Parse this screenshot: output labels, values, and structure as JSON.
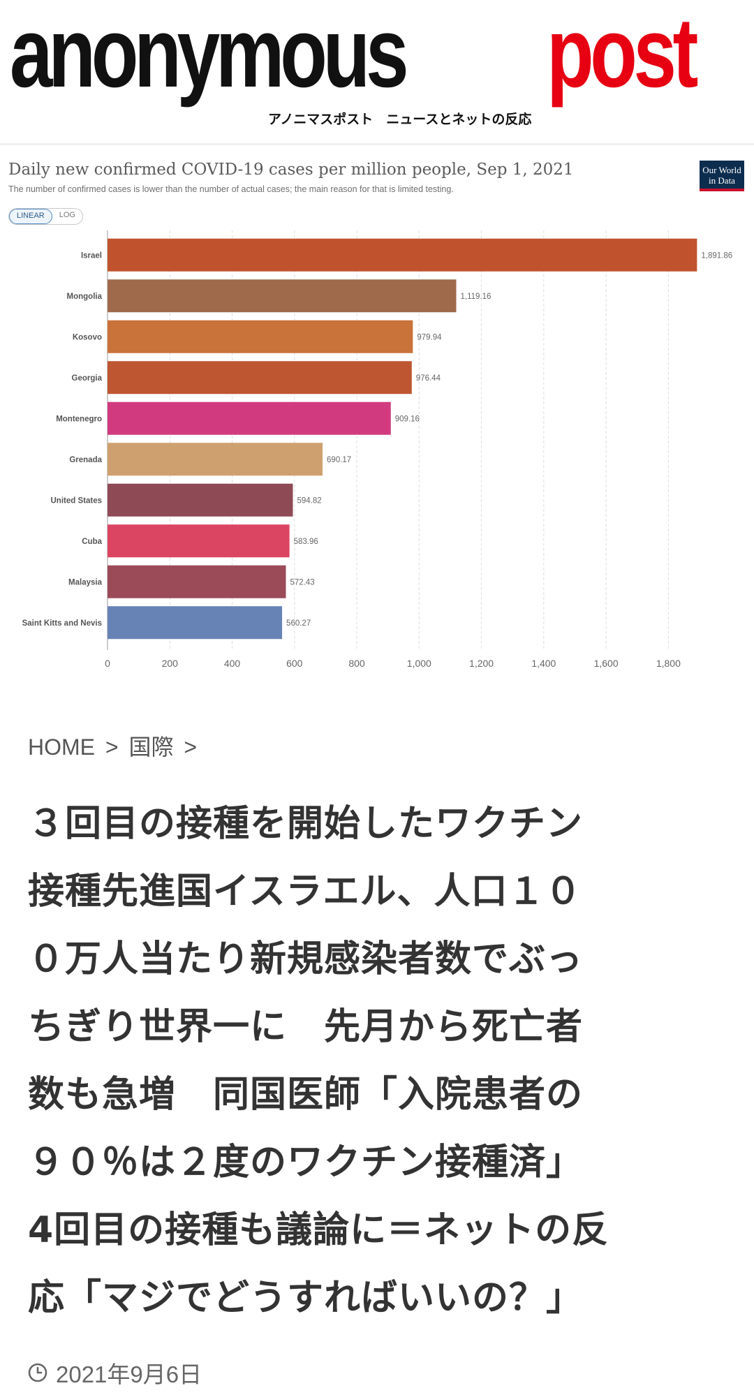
{
  "header": {
    "logo_black": "anonymous",
    "logo_red": "post",
    "tagline": "アノニマスポスト　ニュースとネットの反応"
  },
  "chart": {
    "title": "Daily new confirmed COVID-19 cases per million people, Sep 1, 2021",
    "subtitle": "The number of confirmed cases is lower than the number of actual cases; the main reason for that is limited testing.",
    "badge_line1": "Our World",
    "badge_line2": "in Data",
    "toggle": {
      "linear": "LINEAR",
      "log": "LOG",
      "active": "linear"
    }
  },
  "chart_data": {
    "type": "bar",
    "orientation": "horizontal",
    "title": "Daily new confirmed COVID-19 cases per million people, Sep 1, 2021",
    "categories": [
      "Israel",
      "Mongolia",
      "Kosovo",
      "Georgia",
      "Montenegro",
      "Grenada",
      "United States",
      "Cuba",
      "Malaysia",
      "Saint Kitts and Nevis"
    ],
    "values": [
      1891.86,
      1119.16,
      979.94,
      976.44,
      909.16,
      690.17,
      594.82,
      583.96,
      572.43,
      560.27
    ],
    "value_labels": [
      "1,891.86",
      "1,119.16",
      "979.94",
      "976.44",
      "909.16",
      "690.17",
      "594.82",
      "583.96",
      "572.43",
      "560.27"
    ],
    "colors": [
      "#c0532e",
      "#9e6a4b",
      "#c9723a",
      "#bf5632",
      "#d23a7f",
      "#cfa06f",
      "#8e4a55",
      "#dc4562",
      "#9b4a58",
      "#6783b6"
    ],
    "xlim": [
      0,
      1900
    ],
    "xticks": [
      0,
      200,
      400,
      600,
      800,
      1000,
      1200,
      1400,
      1600,
      1800
    ],
    "xtick_labels": [
      "0",
      "200",
      "400",
      "600",
      "800",
      "1,000",
      "1,200",
      "1,400",
      "1,600",
      "1,800"
    ],
    "grid": true
  },
  "breadcrumb": {
    "home": "HOME",
    "sep1": ">",
    "category": "国際",
    "sep2": ">"
  },
  "article": {
    "title_lines": [
      "３回目の接種を開始したワクチン",
      "接種先進国イスラエル、人口１０",
      "０万人当たり新規感染者数でぶっ",
      "ちぎり世界一に　先月から死亡者",
      "数も急増　同国医師「入院患者の",
      "９０％は２度のワクチン接種済」",
      "4回目の接種も議論に＝ネットの反",
      "応「マジでどうすればいいの？」"
    ],
    "date": "2021年9月6日"
  }
}
